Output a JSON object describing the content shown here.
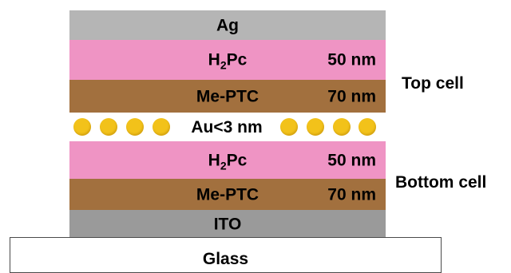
{
  "layers": {
    "ag": {
      "label": "Ag",
      "color": "#b5b5b5"
    },
    "h2pc_top": {
      "label_main": "H",
      "label_sub": "2",
      "label_tail": "Pc",
      "thickness": "50 nm",
      "color": "#ef94c4"
    },
    "meptc_top": {
      "label": "Me-PTC",
      "thickness": "70 nm",
      "color": "#a2703e"
    },
    "au": {
      "label": "Au<3 nm",
      "dot_color": "#f2c21a",
      "dot_count": 8
    },
    "h2pc_bottom": {
      "label_main": "H",
      "label_sub": "2",
      "label_tail": "Pc",
      "thickness": "50 nm",
      "color": "#ef94c4"
    },
    "meptc_bottom": {
      "label": "Me-PTC",
      "thickness": "70 nm",
      "color": "#a2703e"
    },
    "ito": {
      "label": "ITO",
      "color": "#9a9a9a"
    },
    "glass": {
      "label": "Glass",
      "color": "#ffffff"
    }
  },
  "cells": {
    "top": "Top cell",
    "bottom": "Bottom cell"
  }
}
